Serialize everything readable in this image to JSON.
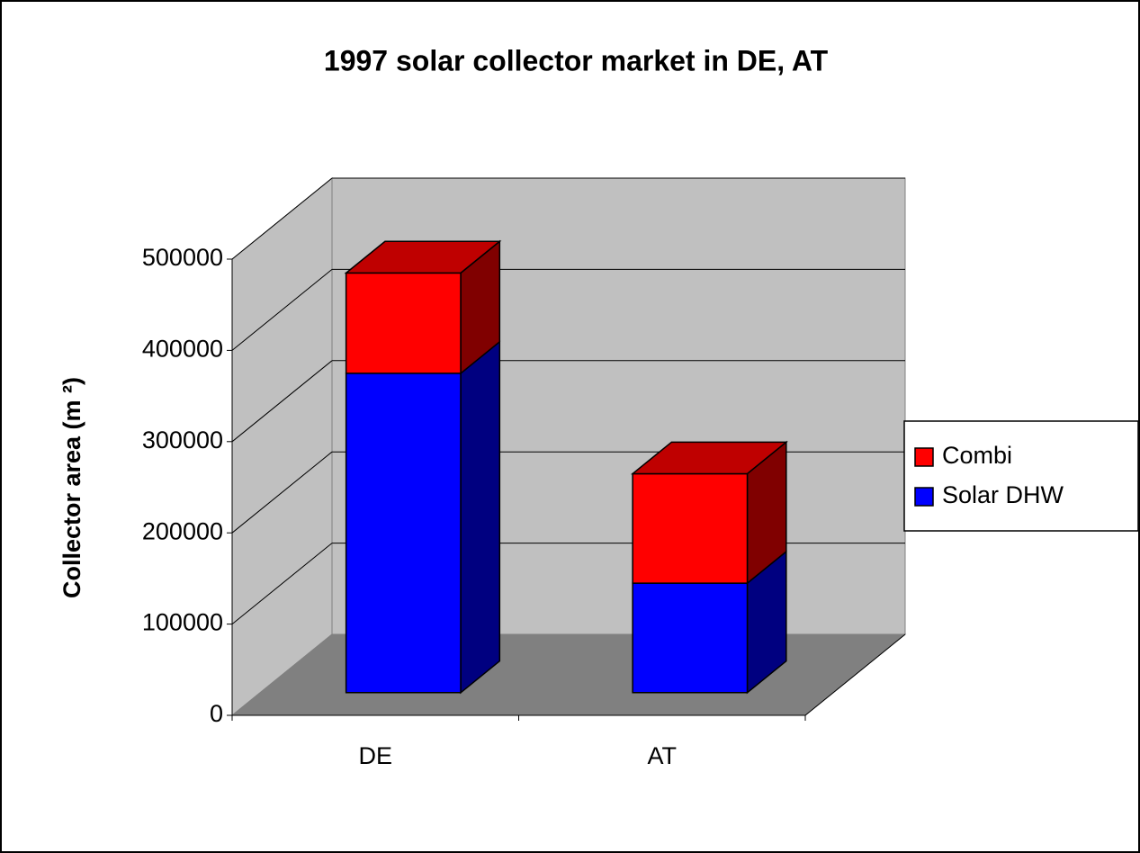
{
  "chart_data": {
    "type": "bar3d_stacked",
    "title": "1997 solar collector market in DE, AT",
    "y_label": "Collector area (m ²)",
    "categories": [
      "DE",
      "AT"
    ],
    "series": [
      {
        "name": "Solar DHW",
        "color": "#0000ff",
        "values": [
          350000,
          120000
        ]
      },
      {
        "name": "Combi",
        "color": "#ff0000",
        "values": [
          110000,
          120000
        ]
      }
    ],
    "ylim": [
      0,
      500000
    ],
    "yticks": [
      0,
      100000,
      200000,
      300000,
      400000,
      500000
    ],
    "grid": true,
    "legend": "right"
  }
}
